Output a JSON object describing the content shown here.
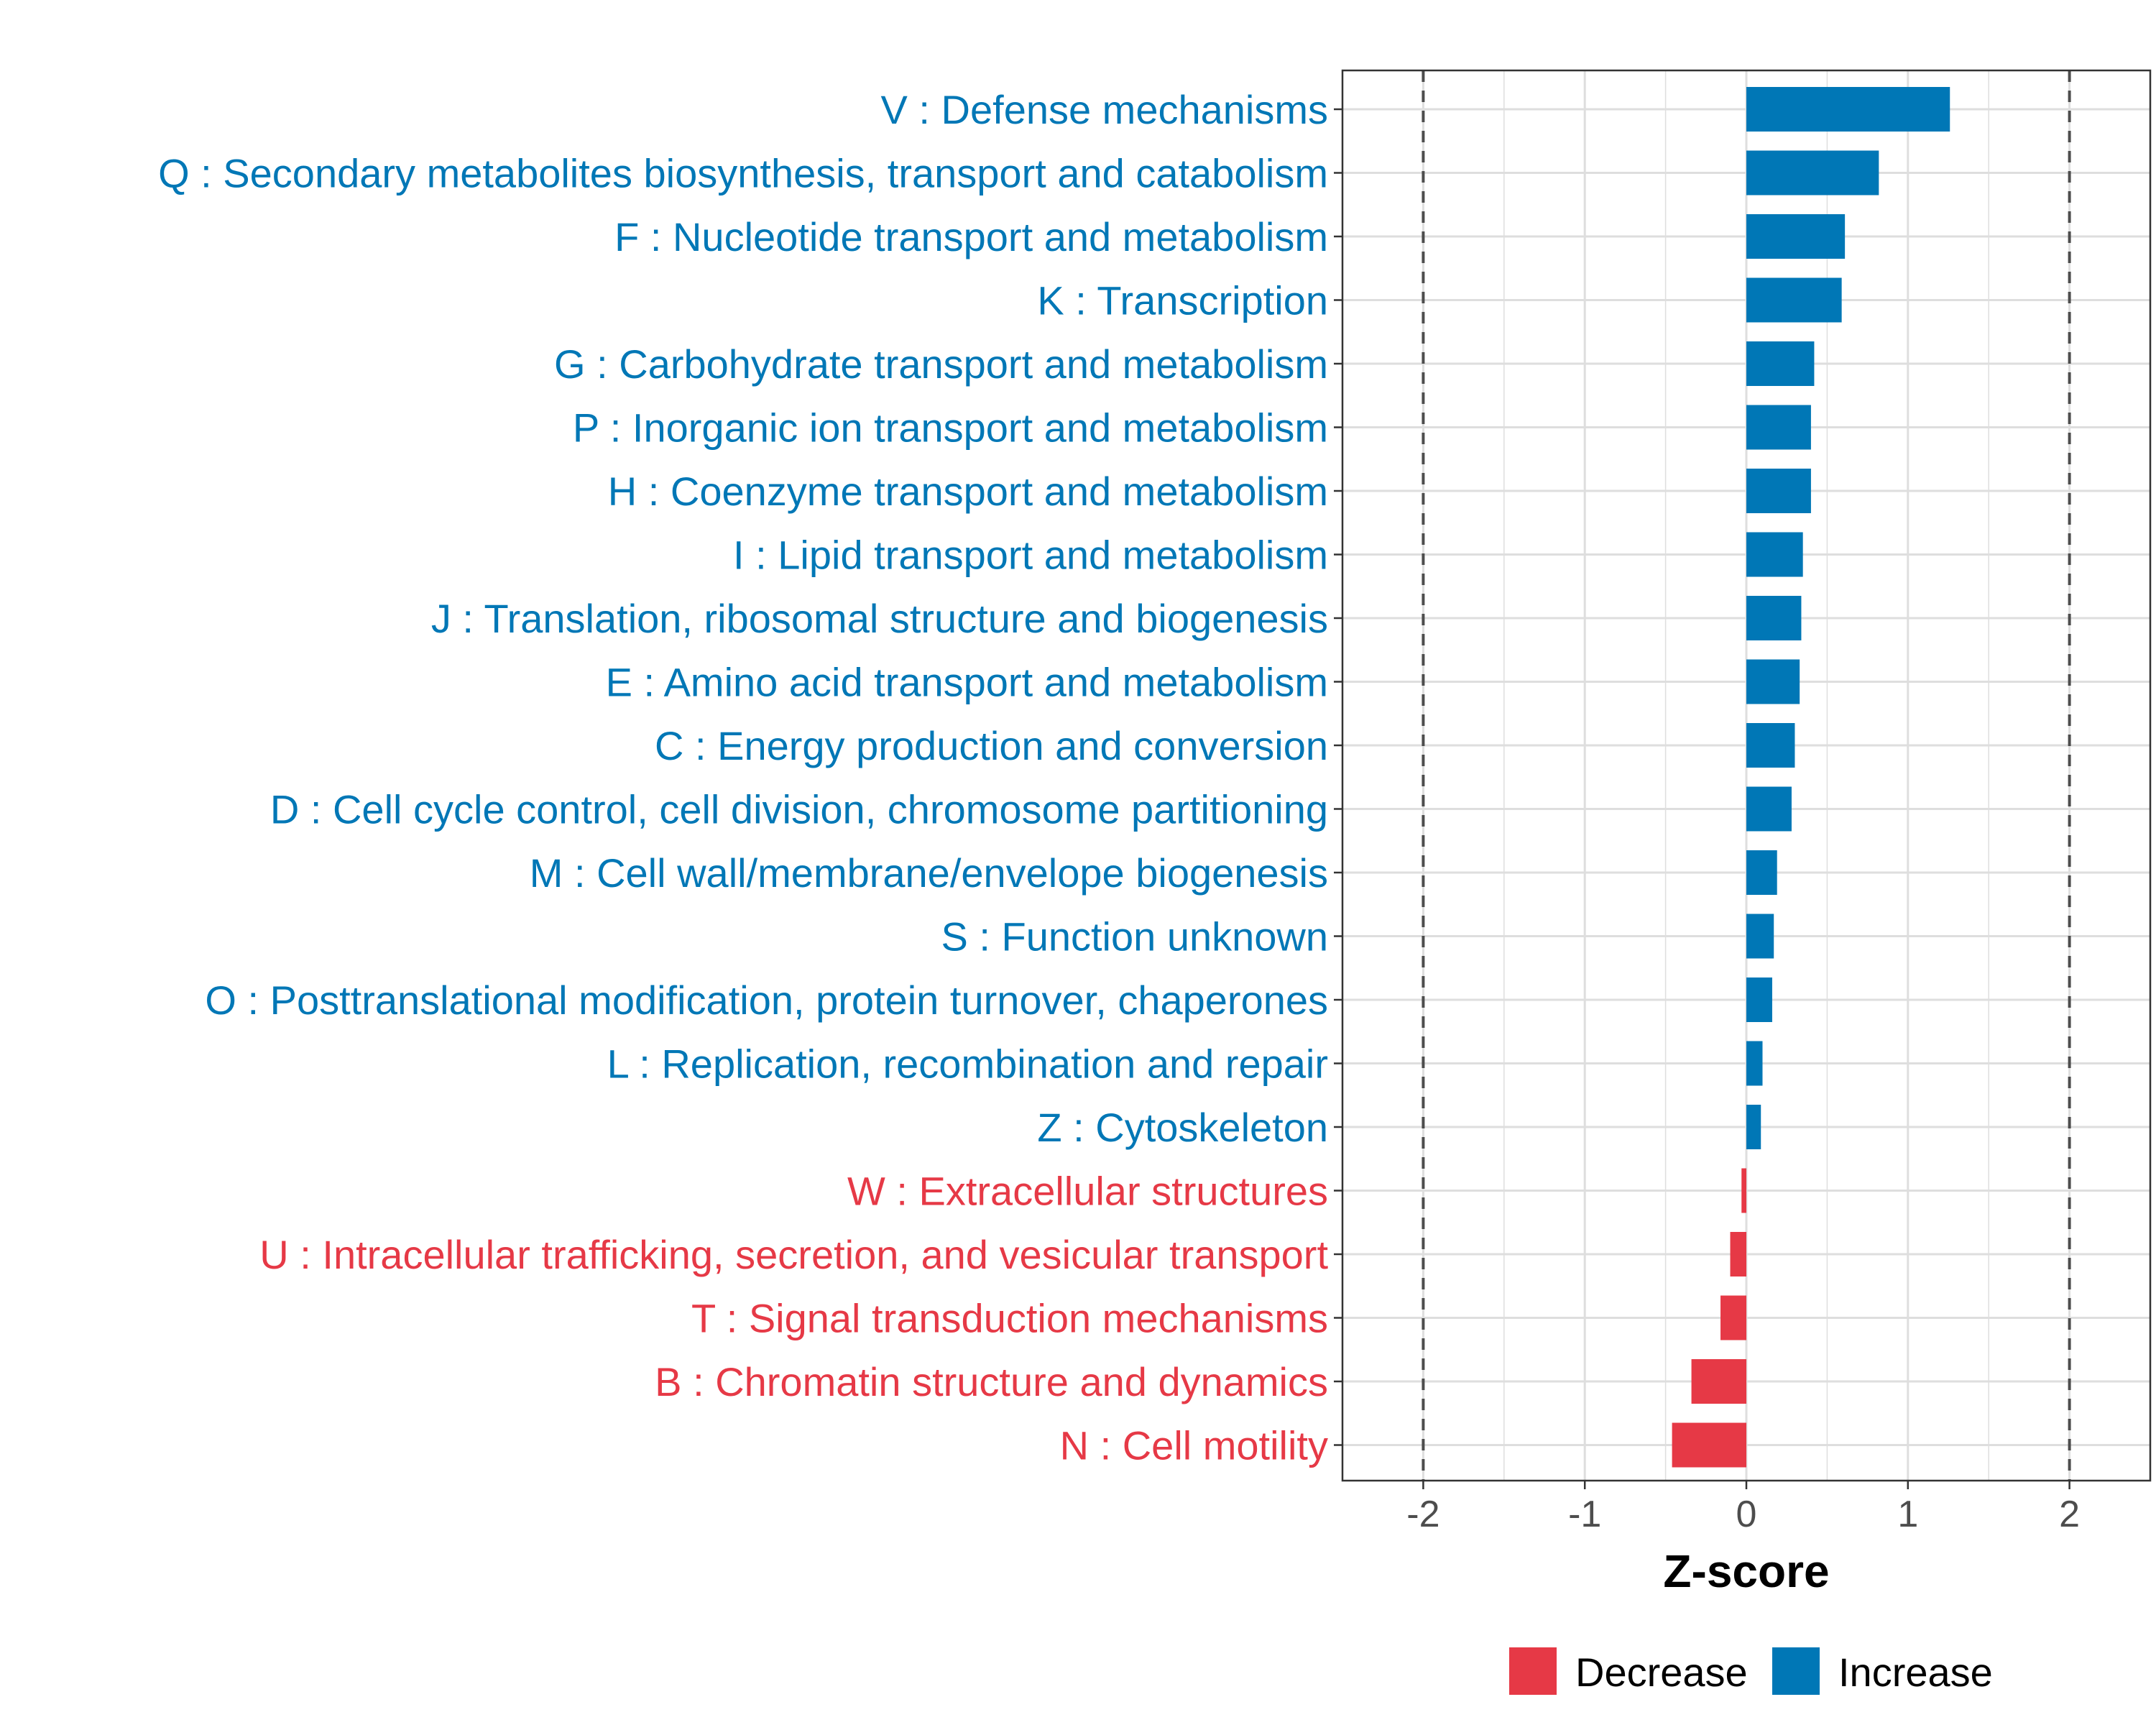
{
  "chart_data": {
    "type": "bar",
    "orientation": "horizontal",
    "categories": [
      "V : Defense mechanisms",
      "Q : Secondary metabolites biosynthesis, transport and catabolism",
      "F : Nucleotide transport and metabolism",
      "K : Transcription",
      "G : Carbohydrate transport and metabolism",
      "P : Inorganic ion transport and metabolism",
      "H : Coenzyme transport and metabolism",
      "I : Lipid transport and metabolism",
      "J : Translation, ribosomal structure and biogenesis",
      "E : Amino acid transport and metabolism",
      "C : Energy production and conversion",
      "D : Cell cycle control, cell division, chromosome partitioning",
      "M : Cell wall/membrane/envelope biogenesis",
      "S : Function unknown",
      "O : Posttranslational modification, protein turnover, chaperones",
      "L : Replication, recombination and repair",
      "Z : Cytoskeleton",
      "W : Extracellular structures",
      "U : Intracellular trafficking, secretion, and vesicular transport",
      "T : Signal transduction mechanisms",
      "B : Chromatin structure and dynamics",
      "N : Cell motility"
    ],
    "values": [
      1.26,
      0.82,
      0.61,
      0.59,
      0.42,
      0.4,
      0.4,
      0.35,
      0.34,
      0.33,
      0.3,
      0.28,
      0.19,
      0.17,
      0.16,
      0.1,
      0.09,
      -0.03,
      -0.1,
      -0.16,
      -0.34,
      -0.46
    ],
    "groups": [
      "Increase",
      "Increase",
      "Increase",
      "Increase",
      "Increase",
      "Increase",
      "Increase",
      "Increase",
      "Increase",
      "Increase",
      "Increase",
      "Increase",
      "Increase",
      "Increase",
      "Increase",
      "Increase",
      "Increase",
      "Decrease",
      "Decrease",
      "Decrease",
      "Decrease",
      "Decrease"
    ],
    "title": "",
    "xlabel": "Z-score",
    "ylabel": "",
    "xlim": [
      -2.5,
      2.5
    ],
    "xticks": [
      -2,
      -1,
      0,
      1,
      2
    ],
    "xtick_labels": [
      "-2",
      "-1",
      "0",
      "1",
      "2"
    ],
    "reference_lines": [
      -2,
      2
    ],
    "grid": true,
    "legend": {
      "position": "bottom",
      "entries": [
        {
          "label": "Decrease",
          "color": "#e63946"
        },
        {
          "label": "Increase",
          "color": "#0077b6"
        }
      ]
    },
    "colors": {
      "Increase": "#0077b6",
      "Decrease": "#e63946"
    }
  }
}
